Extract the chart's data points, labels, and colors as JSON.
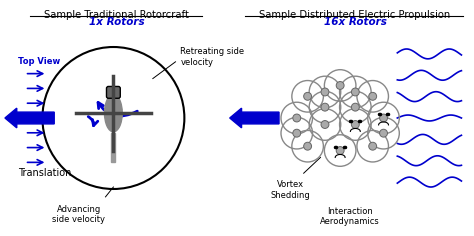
{
  "title_left": "Sample Traditional Rotorcraft",
  "title_right": "Sample Distributed Electric Propulsion",
  "subtitle_left": "1x Rotors",
  "subtitle_right": "16x Rotors",
  "label_top_view": "Top View",
  "label_translation": "Translation",
  "label_retreating": "Retreating side\nvelocity",
  "label_advancing": "Advancing\nside velocity",
  "label_vortex": "Vortex\nShedding",
  "label_interaction": "Interaction\nAerodynamics",
  "blue": "#0000CD",
  "dark_blue": "#00008B",
  "light_blue": "#4169E1",
  "arrow_blue": "#1C3DA0",
  "bg_color": "#FFFFFF",
  "text_color": "#000000",
  "gray": "#888888",
  "light_gray": "#AAAAAA",
  "dark_gray": "#555555"
}
